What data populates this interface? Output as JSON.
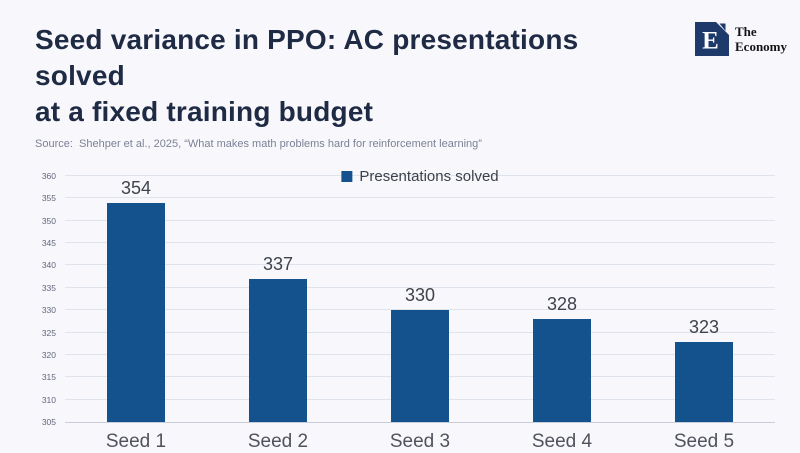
{
  "header": {
    "title_lines": [
      "Seed variance in PPO: AC presentations solved",
      "at a fixed training budget"
    ],
    "brand": {
      "letter": "E",
      "name_lines": [
        "The",
        "Economy"
      ],
      "logo_color": "#1e3a6b"
    }
  },
  "source": {
    "text": "Source:  Shehper et al., 2025, “What makes math problems hard for reinforcement learning”"
  },
  "chart_data": {
    "type": "bar",
    "title": "Seed variance in PPO: AC presentations solved at a fixed training budget",
    "categories": [
      "Seed 1",
      "Seed 2",
      "Seed 3",
      "Seed 4",
      "Seed 5"
    ],
    "values": [
      354,
      337,
      330,
      328,
      323
    ],
    "series_label": "Presentations solved",
    "xlabel": "",
    "ylabel": "",
    "ylim": [
      305,
      360
    ],
    "ytick_step": 5,
    "grid": true,
    "legend_position": "top-center",
    "bar_color": "#14528e",
    "background_color": "#f8f8fc"
  }
}
